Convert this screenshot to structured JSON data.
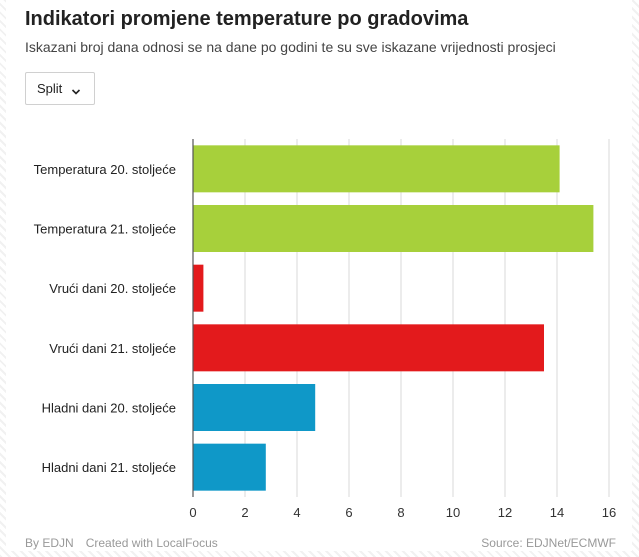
{
  "header": {
    "title": "Indikatori promjene temperature po gradovima",
    "subtitle": "Iskazani broj dana odnosi se na dane po godini te su sve iskazane vrijednosti prosjeci"
  },
  "city_select": {
    "selected": "Split",
    "icon": "chevron-down-icon"
  },
  "footer": {
    "by": "By EDJN",
    "created_with": "Created with LocalFocus",
    "source": "Source: EDJNet/ECMWF"
  },
  "colors": {
    "green": "#a7d03b",
    "red": "#e31a1c",
    "blue": "#0f98c8",
    "grid": "#d9d9d9",
    "axis": "#555555"
  },
  "chart_data": {
    "type": "bar",
    "orientation": "horizontal",
    "categories": [
      "Temperatura 20. stoljeće",
      "Temperatura 21. stoljeće",
      "Vrući dani 20. stoljeće",
      "Vrući dani 21. stoljeće",
      "Hladni dani 20. stoljeće",
      "Hladni dani 21. stoljeće"
    ],
    "values": [
      14.1,
      15.4,
      0.4,
      13.5,
      4.7,
      2.8
    ],
    "bar_colors": [
      "#a7d03b",
      "#a7d03b",
      "#e31a1c",
      "#e31a1c",
      "#0f98c8",
      "#0f98c8"
    ],
    "xlim": [
      0,
      16
    ],
    "xticks": [
      0,
      2,
      4,
      6,
      8,
      10,
      12,
      14,
      16
    ],
    "grid": true,
    "xlabel": "",
    "ylabel": ""
  }
}
